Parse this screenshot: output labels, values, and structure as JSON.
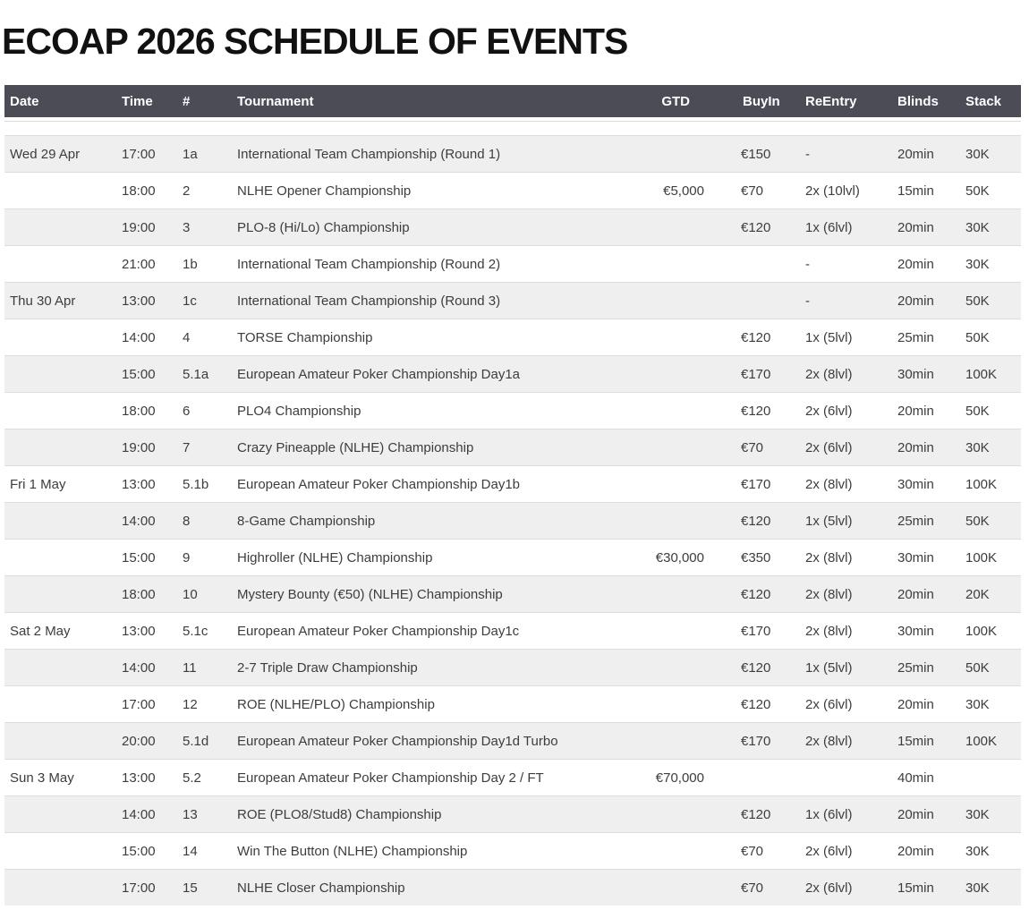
{
  "page": {
    "title": "ECOAP 2026 SCHEDULE OF EVENTS"
  },
  "colors": {
    "header_bg": "#4c4c57",
    "header_text": "#ffffff",
    "row_alt_bg": "#efefef",
    "row_border": "#dcdcdc",
    "body_text": "#3d3d3d"
  },
  "table": {
    "columns": [
      "Date",
      "Time",
      "#",
      "Tournament",
      "GTD",
      "BuyIn",
      "ReEntry",
      "Blinds",
      "Stack"
    ],
    "rows": [
      {
        "date": "Wed 29 Apr",
        "time": "17:00",
        "num": "1a",
        "tournament": "International Team Championship (Round 1)",
        "gtd": "",
        "buyin": "€150",
        "reentry": "-",
        "blinds": "20min",
        "stack": "30K"
      },
      {
        "date": "",
        "time": "18:00",
        "num": "2",
        "tournament": "NLHE Opener Championship",
        "gtd": "€5,000",
        "buyin": "€70",
        "reentry": "2x (10lvl)",
        "blinds": "15min",
        "stack": "50K"
      },
      {
        "date": "",
        "time": "19:00",
        "num": "3",
        "tournament": "PLO-8 (Hi/Lo) Championship",
        "gtd": "",
        "buyin": "€120",
        "reentry": "1x (6lvl)",
        "blinds": "20min",
        "stack": "30K"
      },
      {
        "date": "",
        "time": "21:00",
        "num": "1b",
        "tournament": "International Team Championship (Round 2)",
        "gtd": "",
        "buyin": "",
        "reentry": "-",
        "blinds": "20min",
        "stack": "30K"
      },
      {
        "date": "Thu 30 Apr",
        "time": "13:00",
        "num": "1c",
        "tournament": "International Team Championship (Round 3)",
        "gtd": "",
        "buyin": "",
        "reentry": "-",
        "blinds": "20min",
        "stack": "50K"
      },
      {
        "date": "",
        "time": "14:00",
        "num": "4",
        "tournament": "TORSE Championship",
        "gtd": "",
        "buyin": "€120",
        "reentry": "1x (5lvl)",
        "blinds": "25min",
        "stack": "50K"
      },
      {
        "date": "",
        "time": "15:00",
        "num": "5.1a",
        "tournament": "European Amateur Poker Championship Day1a",
        "gtd": "",
        "buyin": "€170",
        "reentry": "2x (8lvl)",
        "blinds": "30min",
        "stack": "100K"
      },
      {
        "date": "",
        "time": "18:00",
        "num": "6",
        "tournament": "PLO4 Championship",
        "gtd": "",
        "buyin": "€120",
        "reentry": "2x (6lvl)",
        "blinds": "20min",
        "stack": "50K"
      },
      {
        "date": "",
        "time": "19:00",
        "num": "7",
        "tournament": "Crazy Pineapple (NLHE) Championship",
        "gtd": "",
        "buyin": "€70",
        "reentry": "2x (6lvl)",
        "blinds": "20min",
        "stack": "30K"
      },
      {
        "date": "Fri 1 May",
        "time": "13:00",
        "num": "5.1b",
        "tournament": "European Amateur Poker Championship Day1b",
        "gtd": "",
        "buyin": "€170",
        "reentry": "2x (8lvl)",
        "blinds": "30min",
        "stack": "100K"
      },
      {
        "date": "",
        "time": "14:00",
        "num": "8",
        "tournament": "8-Game Championship",
        "gtd": "",
        "buyin": "€120",
        "reentry": "1x (5lvl)",
        "blinds": "25min",
        "stack": "50K"
      },
      {
        "date": "",
        "time": "15:00",
        "num": "9",
        "tournament": "Highroller (NLHE) Championship",
        "gtd": "€30,000",
        "buyin": "€350",
        "reentry": "2x (8lvl)",
        "blinds": "30min",
        "stack": "100K"
      },
      {
        "date": "",
        "time": "18:00",
        "num": "10",
        "tournament": "Mystery Bounty (€50) (NLHE) Championship",
        "gtd": "",
        "buyin": "€120",
        "reentry": "2x (8lvl)",
        "blinds": "20min",
        "stack": "20K"
      },
      {
        "date": "Sat 2 May",
        "time": "13:00",
        "num": "5.1c",
        "tournament": "European Amateur Poker Championship Day1c",
        "gtd": "",
        "buyin": "€170",
        "reentry": "2x (8lvl)",
        "blinds": "30min",
        "stack": "100K"
      },
      {
        "date": "",
        "time": "14:00",
        "num": "11",
        "tournament": "2-7 Triple Draw Championship",
        "gtd": "",
        "buyin": "€120",
        "reentry": "1x (5lvl)",
        "blinds": "25min",
        "stack": "50K"
      },
      {
        "date": "",
        "time": "17:00",
        "num": "12",
        "tournament": "ROE (NLHE/PLO) Championship",
        "gtd": "",
        "buyin": "€120",
        "reentry": "2x (6lvl)",
        "blinds": "20min",
        "stack": "30K"
      },
      {
        "date": "",
        "time": "20:00",
        "num": "5.1d",
        "tournament": "European Amateur Poker Championship Day1d Turbo",
        "gtd": "",
        "buyin": "€170",
        "reentry": "2x (8lvl)",
        "blinds": "15min",
        "stack": "100K"
      },
      {
        "date": "Sun 3 May",
        "time": "13:00",
        "num": "5.2",
        "tournament": "European Amateur Poker Championship Day 2 / FT",
        "gtd": "€70,000",
        "buyin": "",
        "reentry": "",
        "blinds": "40min",
        "stack": ""
      },
      {
        "date": "",
        "time": "14:00",
        "num": "13",
        "tournament": "ROE (PLO8/Stud8) Championship",
        "gtd": "",
        "buyin": "€120",
        "reentry": "1x (6lvl)",
        "blinds": "20min",
        "stack": "30K"
      },
      {
        "date": "",
        "time": "15:00",
        "num": "14",
        "tournament": "Win The Button (NLHE) Championship",
        "gtd": "",
        "buyin": "€70",
        "reentry": "2x (6lvl)",
        "blinds": "20min",
        "stack": "30K"
      },
      {
        "date": "",
        "time": "17:00",
        "num": "15",
        "tournament": "NLHE Closer Championship",
        "gtd": "",
        "buyin": "€70",
        "reentry": "2x (6lvl)",
        "blinds": "15min",
        "stack": "30K"
      }
    ]
  }
}
